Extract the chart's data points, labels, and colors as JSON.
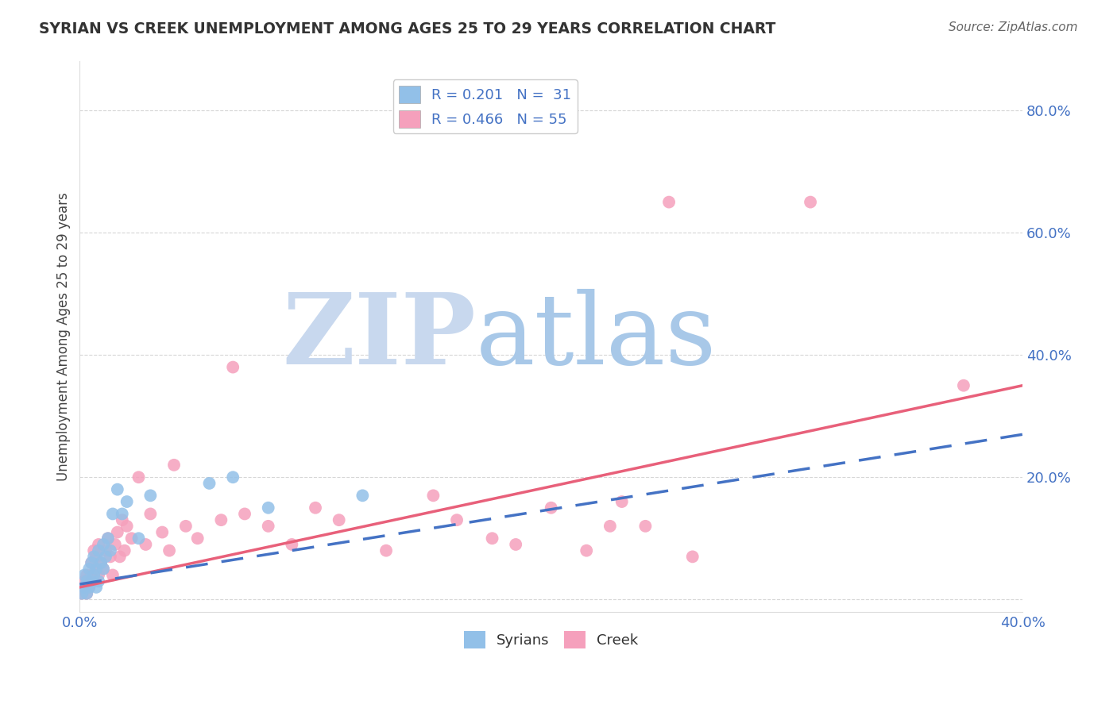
{
  "title": "SYRIAN VS CREEK UNEMPLOYMENT AMONG AGES 25 TO 29 YEARS CORRELATION CHART",
  "source": "Source: ZipAtlas.com",
  "ylabel": "Unemployment Among Ages 25 to 29 years",
  "xlim": [
    0.0,
    0.4
  ],
  "ylim": [
    -0.02,
    0.88
  ],
  "legend_r_syrians": "R = 0.201",
  "legend_n_syrians": "N =  31",
  "legend_r_creek": "R = 0.466",
  "legend_n_creek": "N = 55",
  "color_syrians": "#92C0E8",
  "color_creek": "#F5A0BC",
  "color_syrians_line": "#4472C4",
  "color_creek_line": "#E8607A",
  "color_axis_labels": "#4472C4",
  "background_color": "#FFFFFF",
  "watermark_zip": "ZIP",
  "watermark_atlas": "atlas",
  "watermark_color_zip": "#C8D8EE",
  "watermark_color_atlas": "#A8C8E8",
  "syrians_x": [
    0.001,
    0.002,
    0.002,
    0.003,
    0.003,
    0.004,
    0.004,
    0.005,
    0.005,
    0.006,
    0.006,
    0.007,
    0.007,
    0.008,
    0.008,
    0.009,
    0.01,
    0.01,
    0.011,
    0.012,
    0.013,
    0.014,
    0.016,
    0.018,
    0.02,
    0.025,
    0.03,
    0.055,
    0.065,
    0.08,
    0.12
  ],
  "syrians_y": [
    0.01,
    0.02,
    0.04,
    0.01,
    0.03,
    0.02,
    0.05,
    0.03,
    0.06,
    0.04,
    0.07,
    0.02,
    0.05,
    0.03,
    0.08,
    0.06,
    0.05,
    0.09,
    0.07,
    0.1,
    0.08,
    0.14,
    0.18,
    0.14,
    0.16,
    0.1,
    0.17,
    0.19,
    0.2,
    0.15,
    0.17
  ],
  "creek_x": [
    0.001,
    0.002,
    0.003,
    0.003,
    0.004,
    0.005,
    0.005,
    0.006,
    0.006,
    0.007,
    0.007,
    0.008,
    0.008,
    0.009,
    0.01,
    0.011,
    0.012,
    0.013,
    0.014,
    0.015,
    0.016,
    0.017,
    0.018,
    0.019,
    0.02,
    0.022,
    0.025,
    0.028,
    0.03,
    0.035,
    0.038,
    0.04,
    0.045,
    0.05,
    0.06,
    0.065,
    0.07,
    0.08,
    0.09,
    0.1,
    0.11,
    0.13,
    0.15,
    0.16,
    0.175,
    0.185,
    0.2,
    0.215,
    0.225,
    0.23,
    0.24,
    0.25,
    0.26,
    0.31,
    0.375
  ],
  "creek_y": [
    0.01,
    0.03,
    0.01,
    0.04,
    0.02,
    0.04,
    0.06,
    0.03,
    0.08,
    0.05,
    0.07,
    0.04,
    0.09,
    0.06,
    0.05,
    0.08,
    0.1,
    0.07,
    0.04,
    0.09,
    0.11,
    0.07,
    0.13,
    0.08,
    0.12,
    0.1,
    0.2,
    0.09,
    0.14,
    0.11,
    0.08,
    0.22,
    0.12,
    0.1,
    0.13,
    0.38,
    0.14,
    0.12,
    0.09,
    0.15,
    0.13,
    0.08,
    0.17,
    0.13,
    0.1,
    0.09,
    0.15,
    0.08,
    0.12,
    0.16,
    0.12,
    0.65,
    0.07,
    0.65,
    0.35
  ],
  "syrians_line_x0": 0.0,
  "syrians_line_x1": 0.4,
  "syrians_line_y0": 0.025,
  "syrians_line_y1": 0.27,
  "creek_line_x0": 0.0,
  "creek_line_x1": 0.4,
  "creek_line_y0": 0.02,
  "creek_line_y1": 0.35
}
